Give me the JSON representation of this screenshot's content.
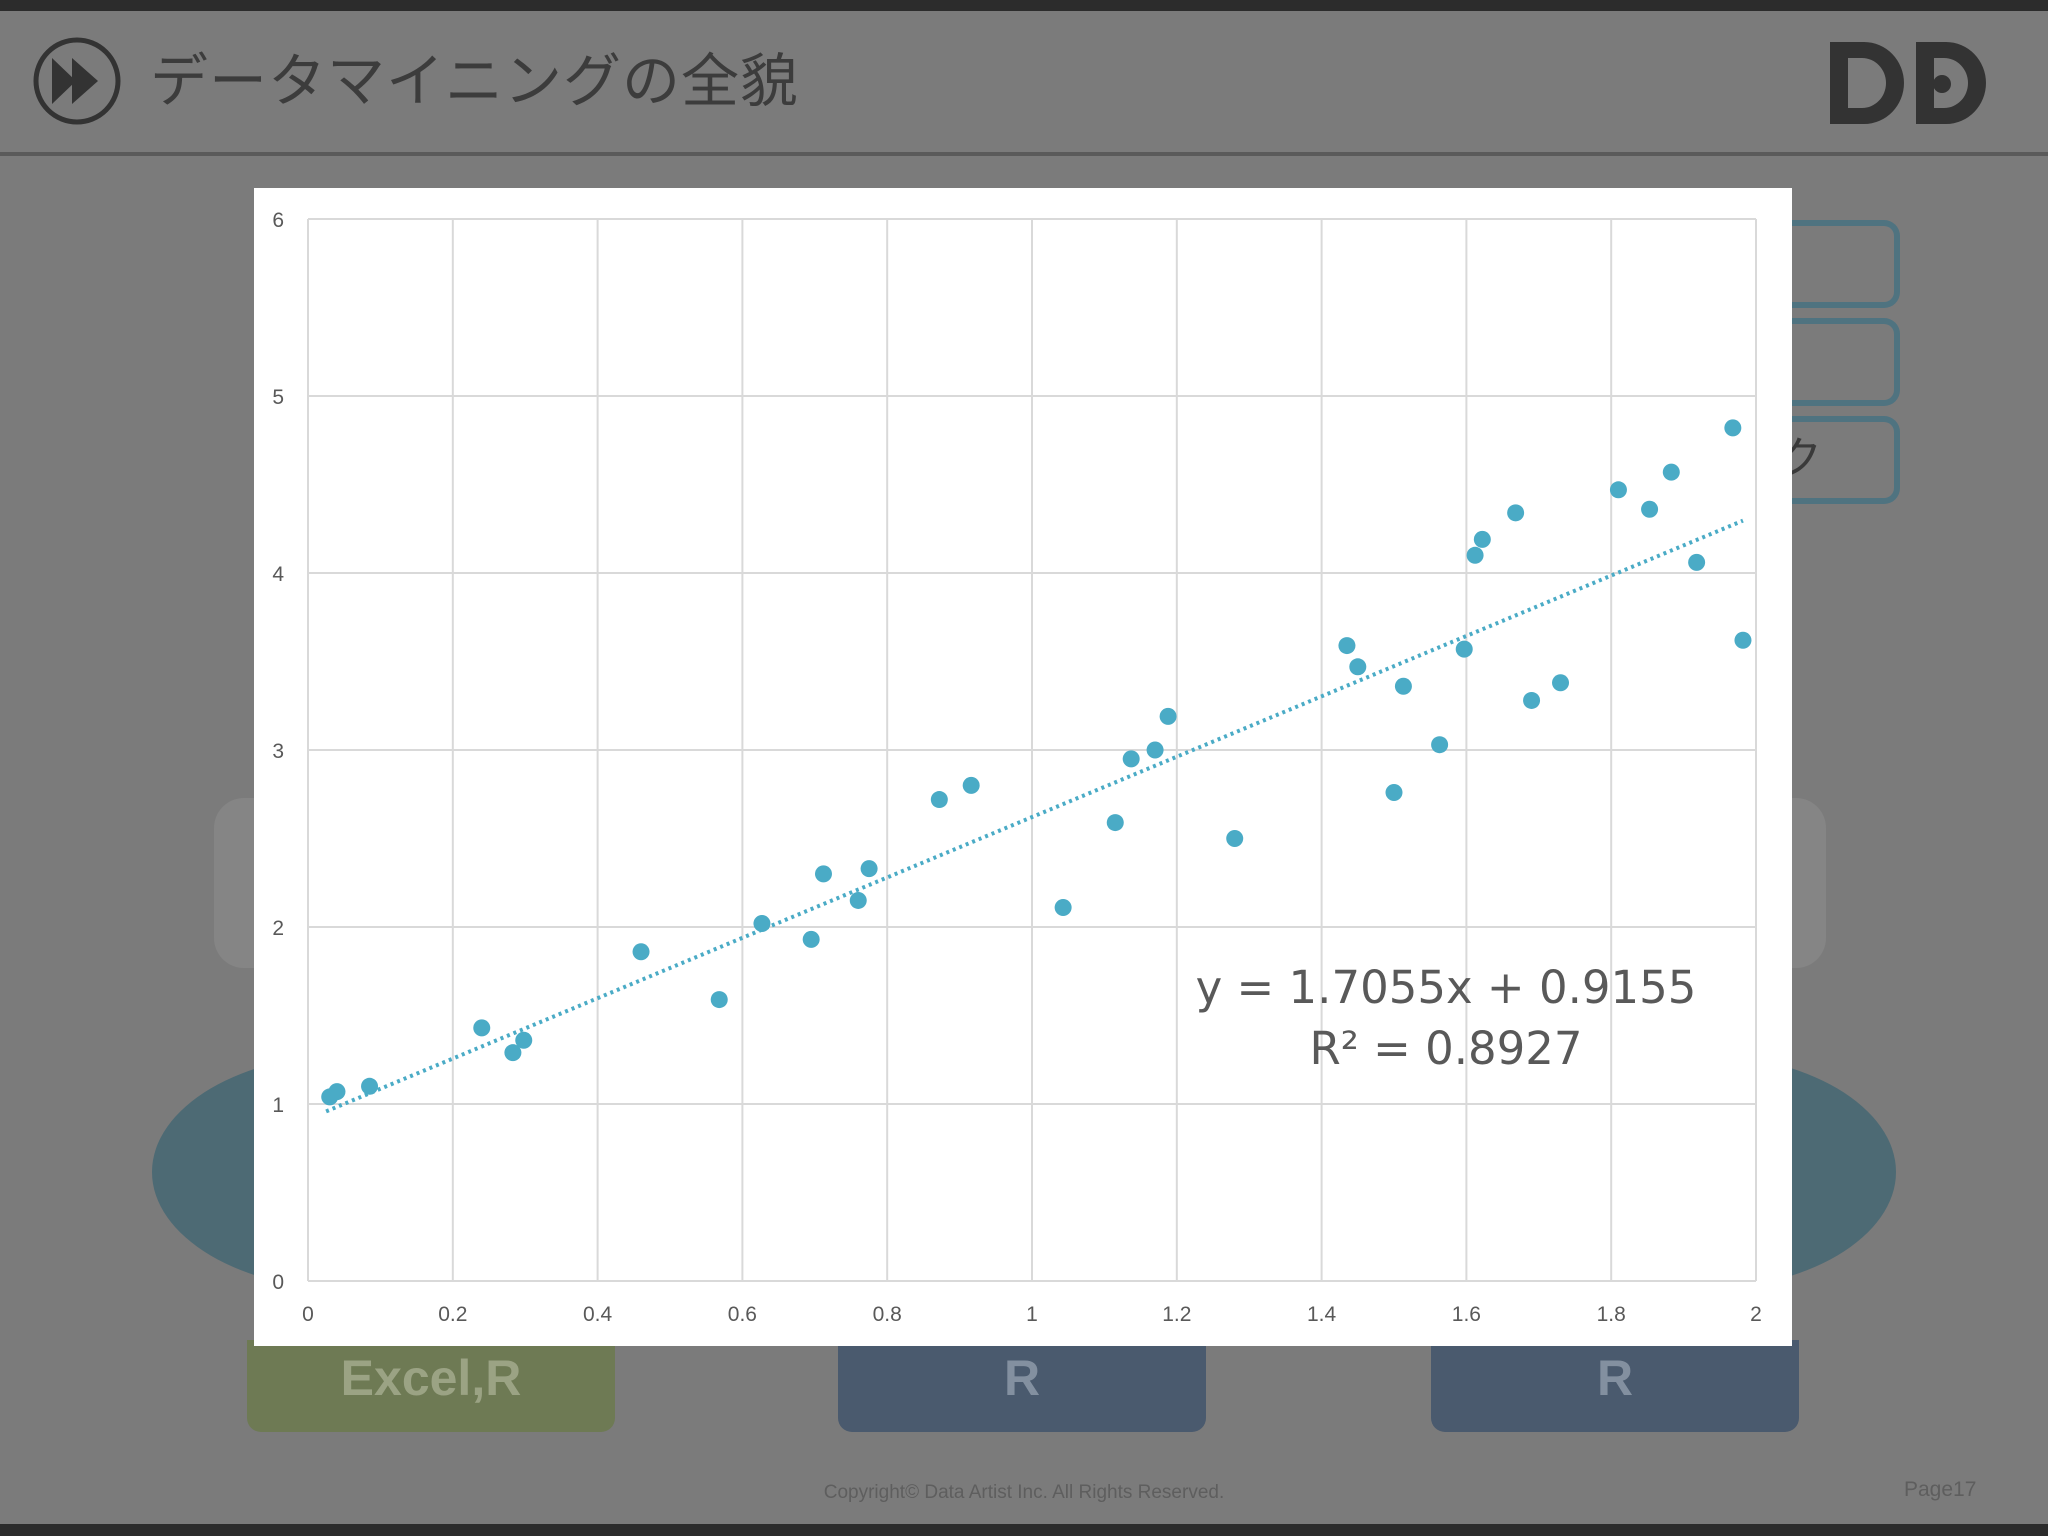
{
  "slide": {
    "title": "データマイニングの全貌",
    "side_box_text": "ク",
    "labels": [
      "Excel,R",
      "R",
      "R"
    ],
    "copyright": "Copyright© Data Artist Inc.   All Rights Reserved.",
    "page": "Page17"
  },
  "colors": {
    "point": "#4aabc6",
    "trendline": "#4aabc6",
    "grid": "#d9d9d9",
    "axis_text": "#595959"
  },
  "chart_data": {
    "type": "scatter",
    "title": "",
    "xlabel": "",
    "ylabel": "",
    "xlim": [
      0,
      2
    ],
    "ylim": [
      0,
      6
    ],
    "x_ticks": [
      "0",
      "0.2",
      "0.4",
      "0.6",
      "0.8",
      "1",
      "1.2",
      "1.4",
      "1.6",
      "1.8",
      "2"
    ],
    "y_ticks": [
      "0",
      "1",
      "2",
      "3",
      "4",
      "5",
      "6"
    ],
    "grid": true,
    "legend": "none",
    "points": [
      {
        "x": 0.03,
        "y": 1.04
      },
      {
        "x": 0.04,
        "y": 1.07
      },
      {
        "x": 0.085,
        "y": 1.1
      },
      {
        "x": 0.24,
        "y": 1.43
      },
      {
        "x": 0.283,
        "y": 1.29
      },
      {
        "x": 0.298,
        "y": 1.36
      },
      {
        "x": 0.46,
        "y": 1.86
      },
      {
        "x": 0.568,
        "y": 1.59
      },
      {
        "x": 0.627,
        "y": 2.02
      },
      {
        "x": 0.695,
        "y": 1.93
      },
      {
        "x": 0.712,
        "y": 2.3
      },
      {
        "x": 0.76,
        "y": 2.15
      },
      {
        "x": 0.775,
        "y": 2.33
      },
      {
        "x": 0.872,
        "y": 2.72
      },
      {
        "x": 0.916,
        "y": 2.8
      },
      {
        "x": 1.043,
        "y": 2.11
      },
      {
        "x": 1.115,
        "y": 2.59
      },
      {
        "x": 1.137,
        "y": 2.95
      },
      {
        "x": 1.17,
        "y": 3.0
      },
      {
        "x": 1.188,
        "y": 3.19
      },
      {
        "x": 1.28,
        "y": 2.5
      },
      {
        "x": 1.435,
        "y": 3.59
      },
      {
        "x": 1.45,
        "y": 3.47
      },
      {
        "x": 1.5,
        "y": 2.76
      },
      {
        "x": 1.513,
        "y": 3.36
      },
      {
        "x": 1.563,
        "y": 3.03
      },
      {
        "x": 1.597,
        "y": 3.57
      },
      {
        "x": 1.612,
        "y": 4.1
      },
      {
        "x": 1.622,
        "y": 4.19
      },
      {
        "x": 1.668,
        "y": 4.34
      },
      {
        "x": 1.69,
        "y": 3.28
      },
      {
        "x": 1.73,
        "y": 3.38
      },
      {
        "x": 1.81,
        "y": 4.47
      },
      {
        "x": 1.853,
        "y": 4.36
      },
      {
        "x": 1.883,
        "y": 4.57
      },
      {
        "x": 1.918,
        "y": 4.06
      },
      {
        "x": 1.968,
        "y": 4.82
      },
      {
        "x": 1.982,
        "y": 3.62
      }
    ],
    "trendline": {
      "type": "linear",
      "slope": 1.7055,
      "intercept": 0.9155,
      "x_range": [
        0.025,
        1.982
      ],
      "style": "dotted",
      "equation": "y = 1.7055x + 0.9155",
      "r_squared": "R² = 0.8927"
    }
  }
}
